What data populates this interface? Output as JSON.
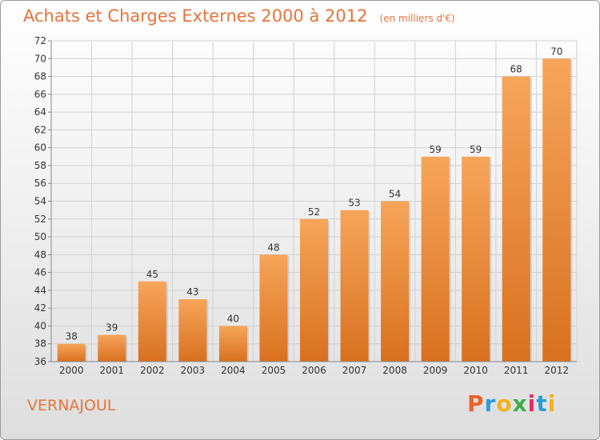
{
  "header": {
    "title": "Achats et Charges Externes 2000 à 2012",
    "unit": "(en milliers d'€)"
  },
  "footer": {
    "commune": "VERNAJOUL",
    "brand": "Proxiti",
    "brand_colors": [
      "#e8622a",
      "#2b9dd8",
      "#f2b21b",
      "#3fae49",
      "#e32d6f",
      "#2b9dd8",
      "#f2b21b"
    ]
  },
  "colors": {
    "accent": "#e8733a",
    "bar_top": "#f7a55a",
    "bar_bottom": "#d8711f"
  },
  "chart_data": {
    "type": "bar",
    "title": "Achats et Charges Externes 2000 à 2012",
    "categories": [
      "2000",
      "2001",
      "2002",
      "2003",
      "2004",
      "2005",
      "2006",
      "2007",
      "2008",
      "2009",
      "2010",
      "2011",
      "2012"
    ],
    "values": [
      38,
      39,
      45,
      43,
      40,
      48,
      52,
      53,
      54,
      59,
      59,
      68,
      70
    ],
    "ylim": [
      36,
      72
    ],
    "yticks": [
      36,
      38,
      40,
      42,
      44,
      46,
      48,
      50,
      52,
      54,
      56,
      58,
      60,
      62,
      64,
      66,
      68,
      70,
      72
    ],
    "grid": true,
    "xlabel": "",
    "ylabel": ""
  }
}
